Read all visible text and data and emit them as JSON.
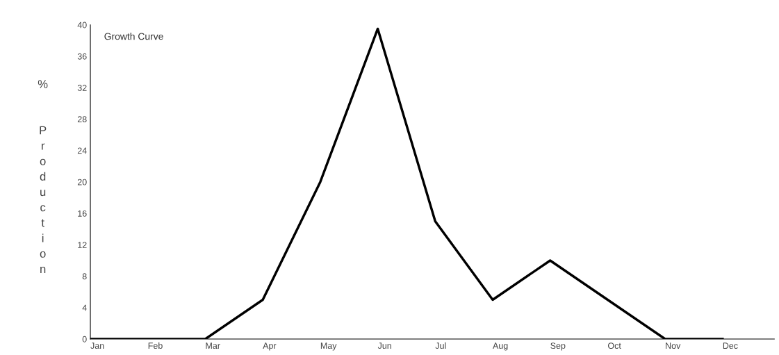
{
  "chart_data": {
    "type": "line",
    "title": "Growth Curve",
    "ylabel": "% Production",
    "categories": [
      "Jan",
      "Feb",
      "Mar",
      "Apr",
      "May",
      "Jun",
      "Jul",
      "Aug",
      "Sep",
      "Oct",
      "Nov",
      "Dec"
    ],
    "series": [
      {
        "color": "#000000",
        "values": [
          0,
          0,
          0,
          5,
          20,
          39.5,
          15,
          5,
          10,
          5,
          0,
          0
        ]
      }
    ],
    "ylim": [
      0,
      40
    ],
    "yticks": [
      0,
      4,
      8,
      12,
      16,
      20,
      24,
      28,
      32,
      36,
      40
    ],
    "grid": false,
    "legend": false,
    "marker": "none",
    "line_style": "solid"
  }
}
